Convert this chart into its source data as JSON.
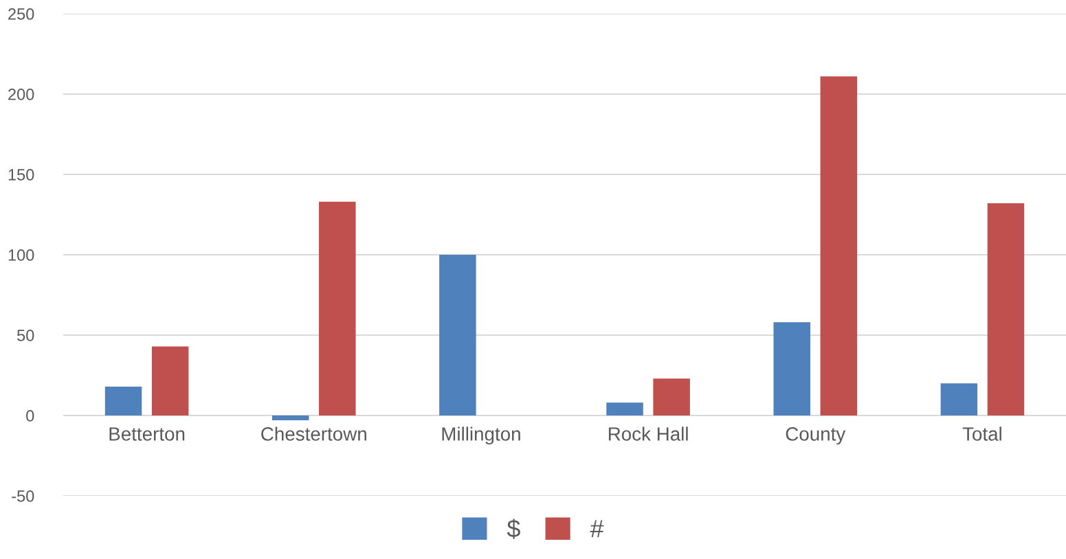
{
  "chart_data": {
    "type": "bar",
    "categories": [
      "Betterton",
      "Chestertown",
      "Millington",
      "Rock Hall",
      "County",
      "Total"
    ],
    "series": [
      {
        "name": "$",
        "color": "#4f81bd",
        "values": [
          18,
          -3,
          100,
          8,
          58,
          20
        ]
      },
      {
        "name": "#",
        "color": "#c0504d",
        "values": [
          43,
          133,
          0,
          23,
          211,
          132
        ]
      }
    ],
    "ylim": [
      -50,
      250
    ],
    "yticks": [
      -50,
      0,
      50,
      100,
      150,
      200,
      250
    ],
    "grid": "y",
    "legend": "bottom"
  }
}
